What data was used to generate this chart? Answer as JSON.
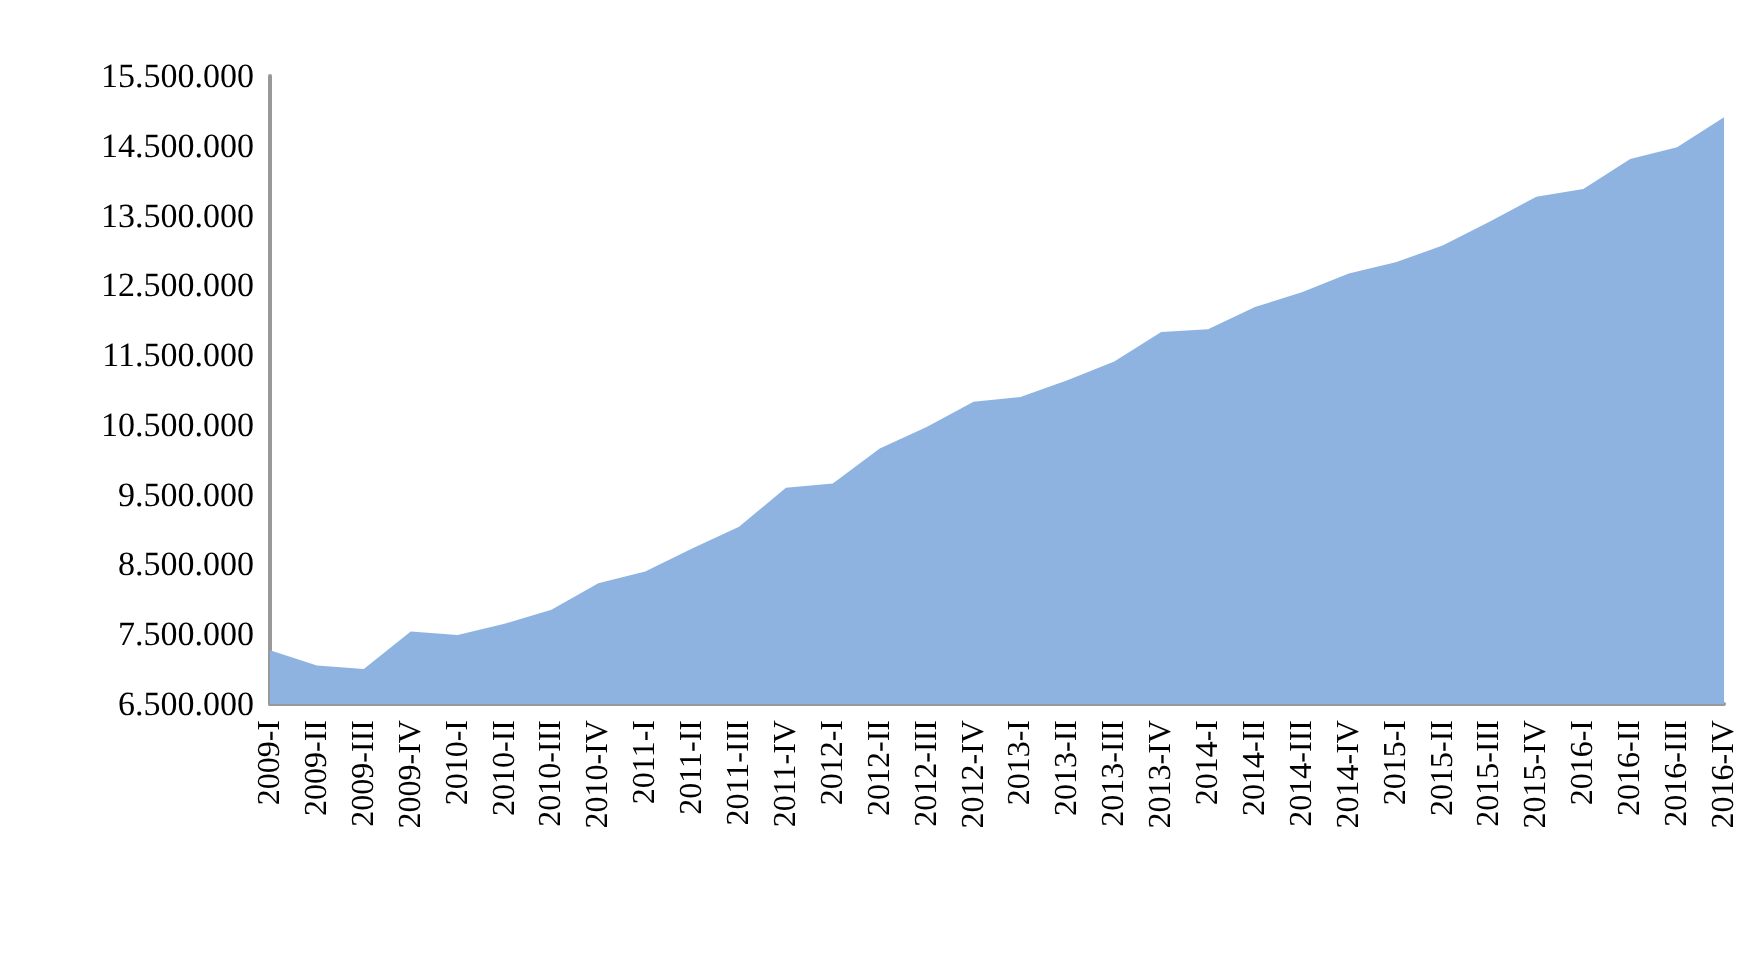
{
  "chart_data": {
    "type": "area",
    "categories": [
      "2009-I",
      "2009-II",
      "2009-III",
      "2009-IV",
      "2010-I",
      "2010-II",
      "2010-III",
      "2010-IV",
      "2011-I",
      "2011-II",
      "2011-III",
      "2011-IV",
      "2012-I",
      "2012-II",
      "2012-III",
      "2012-IV",
      "2013-I",
      "2013-II",
      "2013-III",
      "2013-IV",
      "2014-I",
      "2014-II",
      "2014-III",
      "2014-IV",
      "2015-I",
      "2015-II",
      "2015-III",
      "2015-IV",
      "2016-I",
      "2016-II",
      "2016-III",
      "2016-IV"
    ],
    "series": [
      {
        "color": "#8fb3e1",
        "values": [
          7270000,
          7050000,
          7000000,
          7540000,
          7490000,
          7650000,
          7850000,
          8230000,
          8400000,
          8730000,
          9040000,
          9600000,
          9660000,
          10160000,
          10470000,
          10830000,
          10900000,
          11140000,
          11410000,
          11830000,
          11870000,
          12190000,
          12400000,
          12670000,
          12830000,
          13070000,
          13410000,
          13770000,
          13880000,
          14310000,
          14480000,
          14910000
        ]
      }
    ],
    "ylim": [
      6500000,
      15500000
    ],
    "yticks": [
      {
        "value": 6500000,
        "label": "6.500.000"
      },
      {
        "value": 7500000,
        "label": "7.500.000"
      },
      {
        "value": 8500000,
        "label": "8.500.000"
      },
      {
        "value": 9500000,
        "label": "9.500.000"
      },
      {
        "value": 10500000,
        "label": "10.500.000"
      },
      {
        "value": 11500000,
        "label": "11.500.000"
      },
      {
        "value": 12500000,
        "label": "12.500.000"
      },
      {
        "value": 13500000,
        "label": "13.500.000"
      },
      {
        "value": 14500000,
        "label": "14.500.000"
      },
      {
        "value": 15500000,
        "label": "15.500.000"
      }
    ],
    "grid": false
  }
}
